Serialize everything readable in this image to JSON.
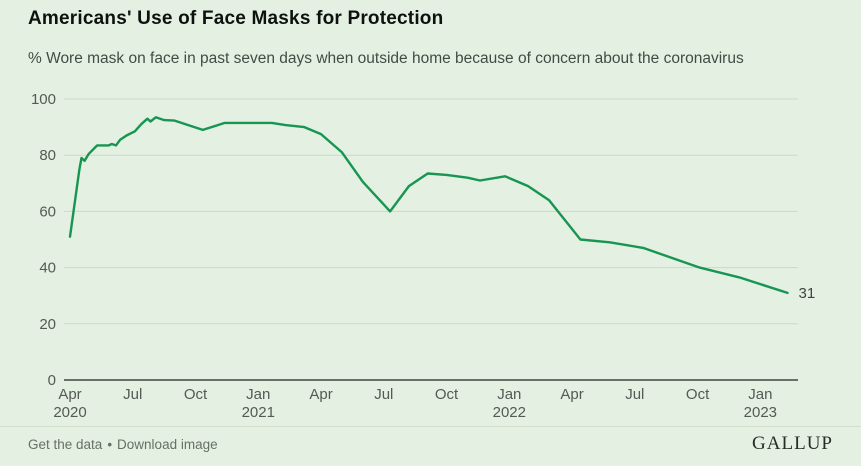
{
  "header": {
    "title": "Americans' Use of Face Masks for Protection",
    "subtitle": "% Wore mask on face in past seven days when outside home because of concern about the coronavirus"
  },
  "footer": {
    "links": [
      {
        "label": "Get the data"
      },
      {
        "label": "Download image"
      }
    ],
    "separator": "•",
    "brand": "GALLUP"
  },
  "colors": {
    "background": "#e4f0e1",
    "line": "#179552",
    "grid": "#ccd9c8",
    "zero_axis": "#1f241f",
    "tick_text": "#545a54",
    "end_label_text": "#3f453f"
  },
  "chart_data": {
    "type": "line",
    "title": "Americans' Use of Face Masks for Protection",
    "subtitle": "% Wore mask on face in past seven days when outside home because of concern about the coronavirus",
    "xlabel": "",
    "ylabel": "",
    "grid": true,
    "legend": "none",
    "x_unit": "months since Apr 2020",
    "xlim": [
      0,
      34.8
    ],
    "ylim": [
      0,
      100
    ],
    "y_ticks": [
      0,
      20,
      40,
      60,
      80,
      100
    ],
    "x_ticks": [
      {
        "m": 0,
        "label": "Apr",
        "year": "2020"
      },
      {
        "m": 3,
        "label": "Jul",
        "year": ""
      },
      {
        "m": 6,
        "label": "Oct",
        "year": ""
      },
      {
        "m": 9,
        "label": "Jan",
        "year": "2021"
      },
      {
        "m": 12,
        "label": "Apr",
        "year": ""
      },
      {
        "m": 15,
        "label": "Jul",
        "year": ""
      },
      {
        "m": 18,
        "label": "Oct",
        "year": ""
      },
      {
        "m": 21,
        "label": "Jan",
        "year": "2022"
      },
      {
        "m": 24,
        "label": "Apr",
        "year": ""
      },
      {
        "m": 27,
        "label": "Jul",
        "year": ""
      },
      {
        "m": 30,
        "label": "Oct",
        "year": ""
      },
      {
        "m": 33,
        "label": "Jan",
        "year": "2023"
      }
    ],
    "series": [
      {
        "name": "% wore mask in past seven days",
        "color": "#179552",
        "end_label": "31",
        "points": [
          [
            0,
            51
          ],
          [
            0.45,
            75
          ],
          [
            0.55,
            79
          ],
          [
            0.7,
            78
          ],
          [
            0.9,
            80.5
          ],
          [
            1.3,
            83.5
          ],
          [
            1.85,
            83.5
          ],
          [
            2.0,
            84
          ],
          [
            2.2,
            83.5
          ],
          [
            2.4,
            85.5
          ],
          [
            2.7,
            87
          ],
          [
            3.1,
            88.5
          ],
          [
            3.4,
            91
          ],
          [
            3.7,
            93
          ],
          [
            3.85,
            92
          ],
          [
            4.1,
            93.5
          ],
          [
            4.5,
            92.5
          ],
          [
            5.0,
            92.3
          ],
          [
            6.35,
            89
          ],
          [
            7.4,
            91.5
          ],
          [
            9.65,
            91.5
          ],
          [
            10.3,
            90.7
          ],
          [
            11.2,
            90
          ],
          [
            12.0,
            87.5
          ],
          [
            13.0,
            81
          ],
          [
            14.0,
            70.5
          ],
          [
            15.3,
            60
          ],
          [
            16.2,
            69
          ],
          [
            17.1,
            73.5
          ],
          [
            18.0,
            73
          ],
          [
            19.0,
            72
          ],
          [
            19.6,
            71
          ],
          [
            20.8,
            72.5
          ],
          [
            21.9,
            69
          ],
          [
            22.9,
            64
          ],
          [
            24.4,
            50
          ],
          [
            25.8,
            49
          ],
          [
            27.4,
            47
          ],
          [
            30.1,
            40
          ],
          [
            32.0,
            36.5
          ],
          [
            34.3,
            31
          ]
        ]
      }
    ]
  }
}
